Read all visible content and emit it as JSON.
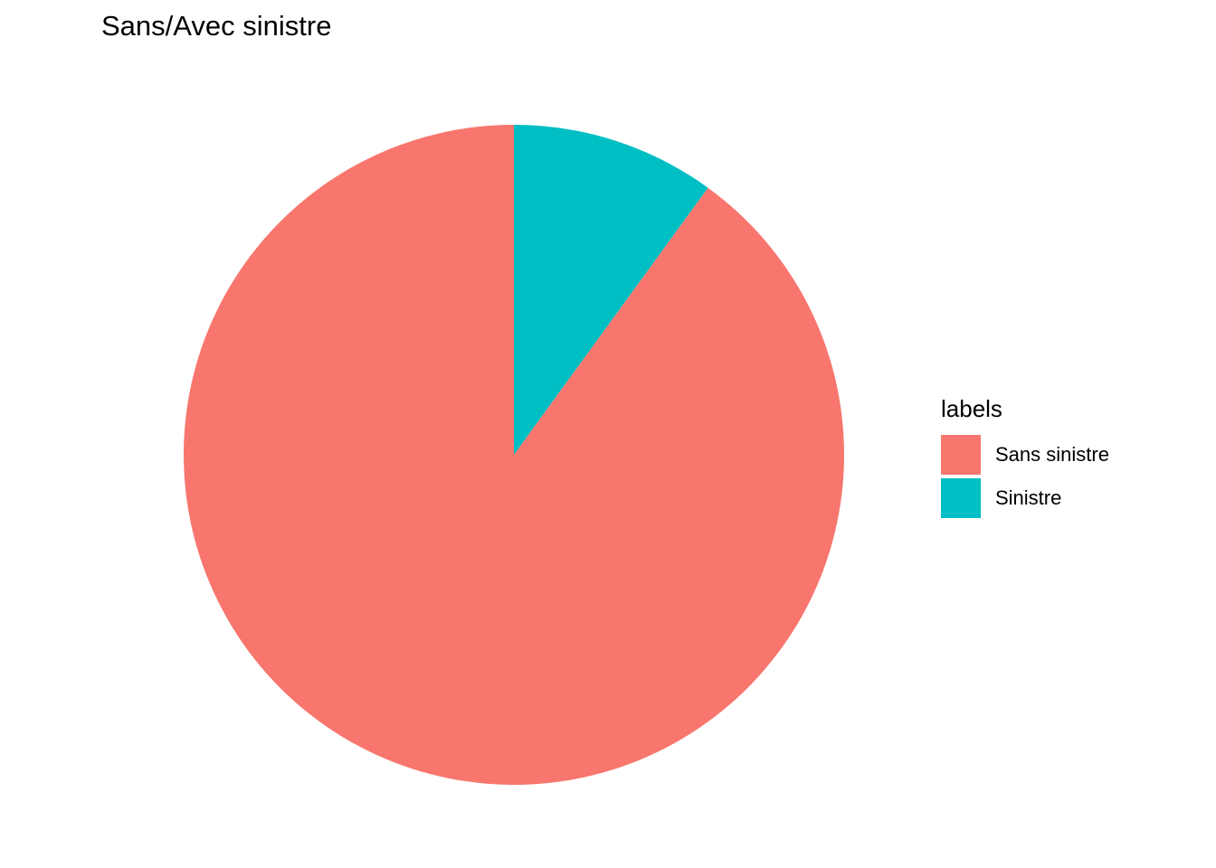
{
  "chart_data": {
    "type": "pie",
    "title": "Sans/Avec sinistre",
    "legend": {
      "title": "labels",
      "position": "right"
    },
    "categories": [
      "Sans sinistre",
      "Sinistre"
    ],
    "values": [
      90,
      10
    ],
    "colors": [
      "#F8766D",
      "#00BFC4"
    ],
    "start": "12 o'clock",
    "direction": "clockwise, Sinistre first"
  }
}
